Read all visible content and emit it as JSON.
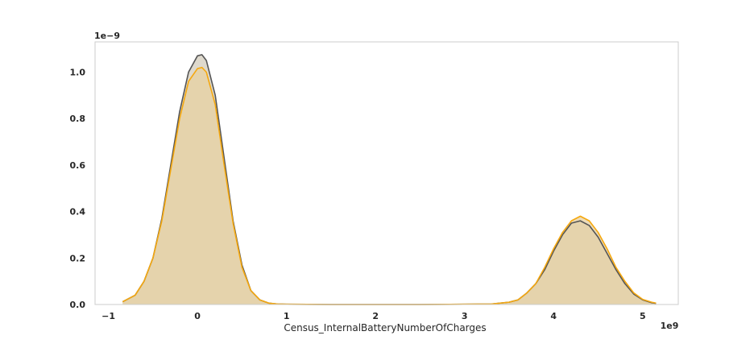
{
  "chart_data": {
    "type": "area",
    "title": "",
    "xlabel": "Census_InternalBatteryNumberOfCharges",
    "ylabel": "",
    "x_offset_label": "1e9",
    "y_offset_label": "1e−9",
    "xlim": [
      -1.15,
      5.4
    ],
    "ylim": [
      0,
      1.13
    ],
    "grid": false,
    "legend": "none",
    "x_ticks": [
      {
        "value": -1,
        "label": "−1"
      },
      {
        "value": 0,
        "label": "0"
      },
      {
        "value": 1,
        "label": "1"
      },
      {
        "value": 2,
        "label": "2"
      },
      {
        "value": 3,
        "label": "3"
      },
      {
        "value": 4,
        "label": "4"
      },
      {
        "value": 5,
        "label": "5"
      }
    ],
    "y_ticks": [
      {
        "value": 0.0,
        "label": "0.0"
      },
      {
        "value": 0.2,
        "label": "0.2"
      },
      {
        "value": 0.4,
        "label": "0.4"
      },
      {
        "value": 0.6,
        "label": "0.6"
      },
      {
        "value": 0.8,
        "label": "0.8"
      },
      {
        "value": 1.0,
        "label": "1.0"
      }
    ],
    "series": [
      {
        "color": "#555555",
        "fill": "#d8d2c4",
        "x": [
          -0.84,
          -0.7,
          -0.6,
          -0.5,
          -0.4,
          -0.3,
          -0.2,
          -0.1,
          0.0,
          0.05,
          0.1,
          0.2,
          0.3,
          0.4,
          0.5,
          0.6,
          0.7,
          0.8,
          0.9,
          1.0,
          1.5,
          2.0,
          2.5,
          3.0,
          3.3,
          3.5,
          3.6,
          3.7,
          3.8,
          3.9,
          4.0,
          4.1,
          4.2,
          4.3,
          4.4,
          4.5,
          4.6,
          4.7,
          4.8,
          4.9,
          5.0,
          5.1,
          5.15
        ],
        "y": [
          0.012,
          0.04,
          0.1,
          0.2,
          0.37,
          0.6,
          0.83,
          1.0,
          1.07,
          1.075,
          1.05,
          0.9,
          0.63,
          0.36,
          0.17,
          0.06,
          0.02,
          0.006,
          0.002,
          0.001,
          0.0,
          0.0,
          0.0,
          0.001,
          0.002,
          0.01,
          0.02,
          0.05,
          0.09,
          0.15,
          0.23,
          0.3,
          0.35,
          0.36,
          0.34,
          0.29,
          0.22,
          0.15,
          0.09,
          0.045,
          0.02,
          0.008,
          0.005
        ]
      },
      {
        "color": "#f5a80f",
        "fill": "#e7d0a0",
        "x": [
          -0.84,
          -0.7,
          -0.6,
          -0.5,
          -0.4,
          -0.3,
          -0.2,
          -0.1,
          0.0,
          0.05,
          0.1,
          0.2,
          0.3,
          0.4,
          0.5,
          0.6,
          0.7,
          0.8,
          0.9,
          1.0,
          1.5,
          2.0,
          2.5,
          3.0,
          3.3,
          3.5,
          3.6,
          3.7,
          3.8,
          3.9,
          4.0,
          4.1,
          4.2,
          4.3,
          4.4,
          4.5,
          4.6,
          4.7,
          4.8,
          4.9,
          5.0,
          5.1,
          5.15
        ],
        "y": [
          0.012,
          0.04,
          0.1,
          0.2,
          0.36,
          0.58,
          0.8,
          0.96,
          1.015,
          1.02,
          1.0,
          0.86,
          0.6,
          0.35,
          0.16,
          0.06,
          0.02,
          0.006,
          0.002,
          0.001,
          0.0,
          0.0,
          0.0,
          0.001,
          0.002,
          0.01,
          0.02,
          0.05,
          0.09,
          0.16,
          0.24,
          0.31,
          0.36,
          0.38,
          0.36,
          0.31,
          0.24,
          0.16,
          0.1,
          0.05,
          0.022,
          0.01,
          0.006
        ]
      }
    ]
  }
}
